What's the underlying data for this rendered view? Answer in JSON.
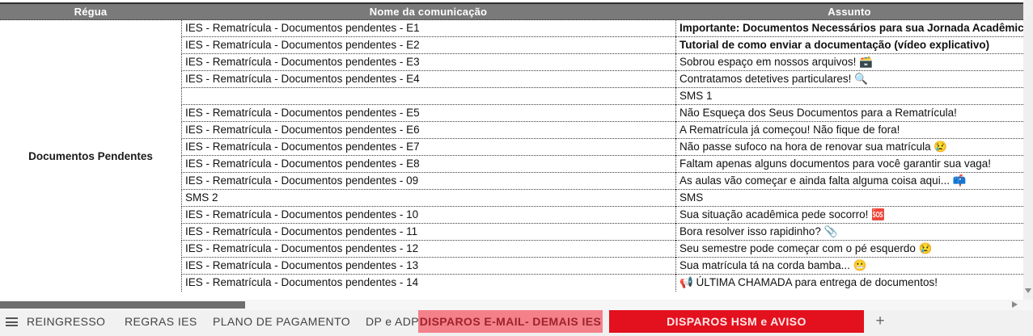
{
  "table": {
    "columns": [
      "Régua",
      "Nome da comunicação",
      "Assunto"
    ],
    "regua_group": "Documentos Pendentes",
    "rows": [
      {
        "nome": "IES - Rematrícula - Documentos pendentes - E1",
        "assunto": "Importante: Documentos Necessários para sua Jornada Acadêmica",
        "bold": true
      },
      {
        "nome": "IES - Rematrícula - Documentos pendentes - E2",
        "assunto": "Tutorial de como enviar a documentação (vídeo explicativo)",
        "bold": true
      },
      {
        "nome": "IES - Rematrícula - Documentos pendentes - E3",
        "assunto": "Sobrou espaço em nossos arquivos! 🗃️",
        "bold": false
      },
      {
        "nome": "IES - Rematrícula - Documentos pendentes - E4",
        "assunto": "Contratamos detetives particulares! 🔍",
        "bold": false
      },
      {
        "nome": "",
        "assunto": "SMS 1",
        "bold": false
      },
      {
        "nome": "IES - Rematrícula - Documentos pendentes - E5",
        "assunto": "Não Esqueça dos Seus Documentos para a Rematrícula!",
        "bold": false
      },
      {
        "nome": "IES - Rematrícula - Documentos pendentes - E6",
        "assunto": "A Rematrícula já começou! Não fique de fora!",
        "bold": false
      },
      {
        "nome": "IES - Rematrícula - Documentos pendentes - E7",
        "assunto": "Não passe sufoco na hora de renovar sua matrícula 😢",
        "bold": false
      },
      {
        "nome": "IES - Rematrícula - Documentos pendentes - E8",
        "assunto": "Faltam apenas alguns documentos para você garantir sua vaga!",
        "bold": false
      },
      {
        "nome": "IES - Rematrícula - Documentos pendentes - 09",
        "assunto": "As aulas vão começar e ainda falta alguma coisa aqui... 📫",
        "bold": false
      },
      {
        "nome": "SMS 2",
        "assunto": "SMS",
        "bold": false
      },
      {
        "nome": "IES - Rematrícula - Documentos pendentes - 10",
        "assunto": "Sua situação acadêmica pede socorro! 🆘",
        "bold": false
      },
      {
        "nome": "IES - Rematrícula - Documentos pendentes - 11",
        "assunto": "Bora resolver isso rapidinho? 📎",
        "bold": false
      },
      {
        "nome": "IES - Rematrícula - Documentos pendentes - 12",
        "assunto": "Seu semestre pode começar com o pé esquerdo 😢",
        "bold": false
      },
      {
        "nome": "IES - Rematrícula - Documentos pendentes - 13",
        "assunto": "Sua matrícula tá na corda bamba... 😬",
        "bold": false
      },
      {
        "nome": "IES - Rematrícula - Documentos pendentes - 14",
        "assunto": "📢 ÚLTIMA CHAMADA para entrega de documentos!",
        "bold": false
      }
    ]
  },
  "sheet_tabs": {
    "tabs": [
      {
        "label": "REINGRESSO",
        "style": "plain"
      },
      {
        "label": "REGRAS IES",
        "style": "plain"
      },
      {
        "label": "PLANO DE PAGAMENTO",
        "style": "plain"
      },
      {
        "label": "DP e ADP",
        "style": "plain"
      },
      {
        "label": "DISPAROS E-MAIL- DEMAIS IES",
        "style": "pink"
      },
      {
        "label": "DISPAROS HSM e AVISO",
        "style": "red"
      }
    ],
    "add_label": "+"
  },
  "colors": {
    "header_bg": "#7a7a7a",
    "pink_tab_bg": "#F4808A",
    "pink_tab_text": "#9E232B",
    "red_tab_bg": "#E3101D",
    "red_tab_text": "#FFE9E9"
  }
}
